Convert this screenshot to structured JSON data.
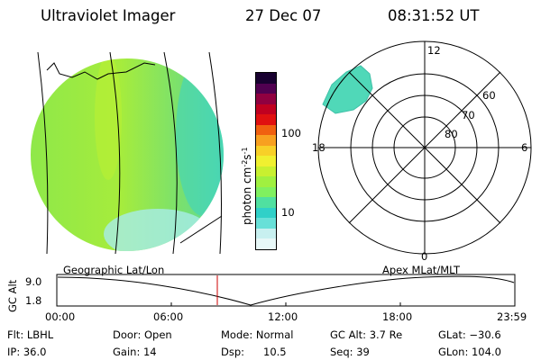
{
  "header": {
    "title": "Ultraviolet Imager",
    "date": "27 Dec 07",
    "time": "08:31:52 UT"
  },
  "colorbar": {
    "label_html": "photon cm<tspan dy=\"-4\" font-size=\"8\">-2</tspan><tspan dy=\"4\">s</tspan><tspan dy=\"-4\" font-size=\"8\">-1</tspan>",
    "ticks": [
      "100",
      "10"
    ],
    "colors": [
      "#e8f8f8",
      "#c8f0f0",
      "#68e0d8",
      "#30d0c8",
      "#50e0a0",
      "#80f060",
      "#a0f040",
      "#c8f030",
      "#f0f030",
      "#f8d028",
      "#f8a020",
      "#f06010",
      "#e01010",
      "#c00020",
      "#900040",
      "#500050",
      "#180030"
    ]
  },
  "polar": {
    "mlt_labels": [
      "12",
      "18",
      "6",
      "0"
    ],
    "lat_labels": [
      "60",
      "70",
      "80"
    ]
  },
  "orbit": {
    "ylabel": "GC Alt",
    "left_label": "Geographic Lat/Lon",
    "right_label": "Apex MLat/MLT",
    "yticks": [
      "9.0",
      "1.8"
    ],
    "xticks": [
      "00:00",
      "06:00",
      "12:00",
      "18:00",
      "23:59"
    ]
  },
  "status": {
    "filter": "Flt: LBHL",
    "ip": "IP: 36.0",
    "door": "Door: Open",
    "gain": "Gain: 14",
    "mode": "Mode: Normal",
    "dsp_label": "Dsp:",
    "dsp_value": "10.5",
    "gc_alt": "GC Alt: 3.7 Re",
    "seq": "Seq: 39",
    "glat": "GLat: −30.6",
    "glon": "GLon: 104.0"
  },
  "colors": {
    "current_time_marker": "#cc0000"
  }
}
